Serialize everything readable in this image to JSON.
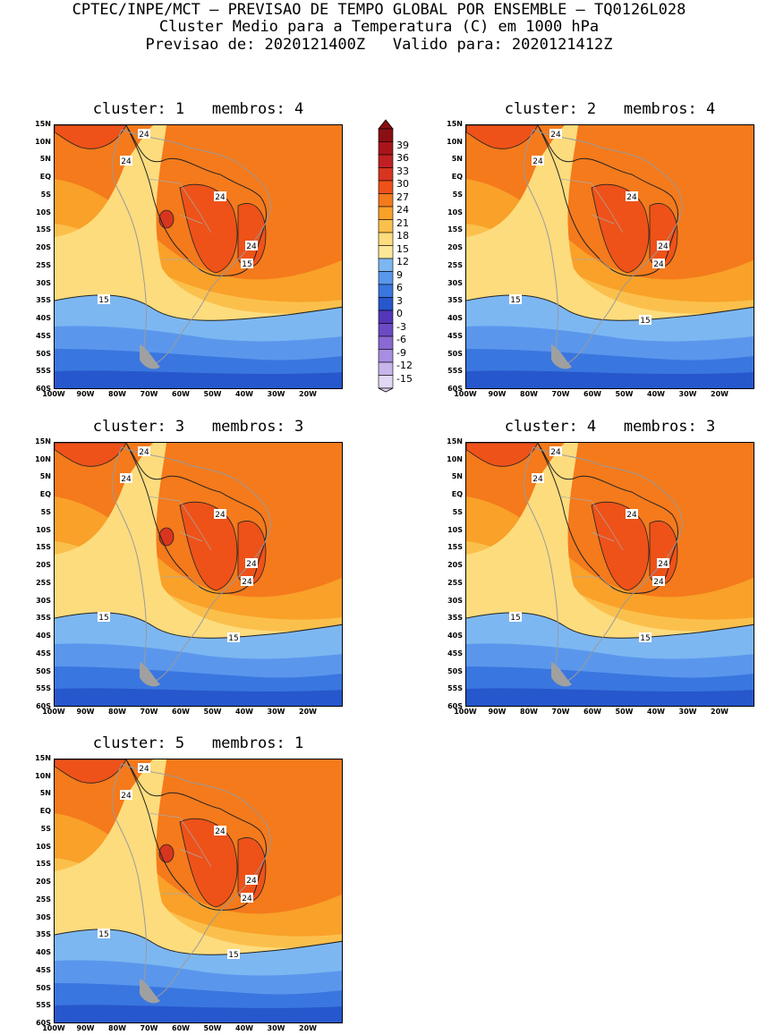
{
  "header": {
    "line1": "CPTEC/INPE/MCT – PREVISAO DE TEMPO GLOBAL POR ENSEMBLE – TQ0126L028",
    "line2": "Cluster Medio para a Temperatura (C) em 1000 hPa",
    "line3": "Previsao de: 2020121400Z   Valido para: 2020121412Z"
  },
  "lat_labels": [
    "15N",
    "10N",
    "5N",
    "EQ",
    "5S",
    "10S",
    "15S",
    "20S",
    "25S",
    "30S",
    "35S",
    "40S",
    "45S",
    "50S",
    "55S",
    "60S"
  ],
  "lon_labels": [
    "100W",
    "90W",
    "80W",
    "70W",
    "60W",
    "50W",
    "40W",
    "30W",
    "20W"
  ],
  "panels": [
    {
      "title": "cluster: 1   membros: 4",
      "contour_labels": [
        "24",
        "24",
        "24",
        "24",
        "15",
        "15"
      ]
    },
    {
      "title": "cluster: 2   membros: 4",
      "contour_labels": [
        "24",
        "24",
        "24",
        "24",
        "24",
        "15",
        "15"
      ]
    },
    {
      "title": "cluster: 3   membros: 3",
      "contour_labels": [
        "24",
        "24",
        "24",
        "24",
        "24",
        "15",
        "15"
      ]
    },
    {
      "title": "cluster: 4   membros: 3",
      "contour_labels": [
        "24",
        "24",
        "24",
        "24",
        "24",
        "15",
        "15"
      ]
    },
    {
      "title": "cluster: 5   membros: 1",
      "contour_labels": [
        "24",
        "24",
        "24",
        "24",
        "24",
        "15",
        "15"
      ]
    }
  ],
  "legend": {
    "levels": [
      "39",
      "36",
      "33",
      "30",
      "27",
      "24",
      "21",
      "18",
      "15",
      "12",
      "9",
      "6",
      "3",
      "0",
      "-3",
      "-6",
      "-9",
      "-12",
      "-15"
    ],
    "colors": [
      "#8b0f12",
      "#a8151a",
      "#c02023",
      "#d8351f",
      "#ee5219",
      "#f47a1c",
      "#f9a129",
      "#fbc04c",
      "#fddc7e",
      "#fde898",
      "#7db7f2",
      "#5a97ec",
      "#3a76df",
      "#2657cc",
      "#5437b8",
      "#6b4ac4",
      "#8a69d2",
      "#a88ee0",
      "#c7b5ec",
      "#e2d8f5"
    ]
  }
}
